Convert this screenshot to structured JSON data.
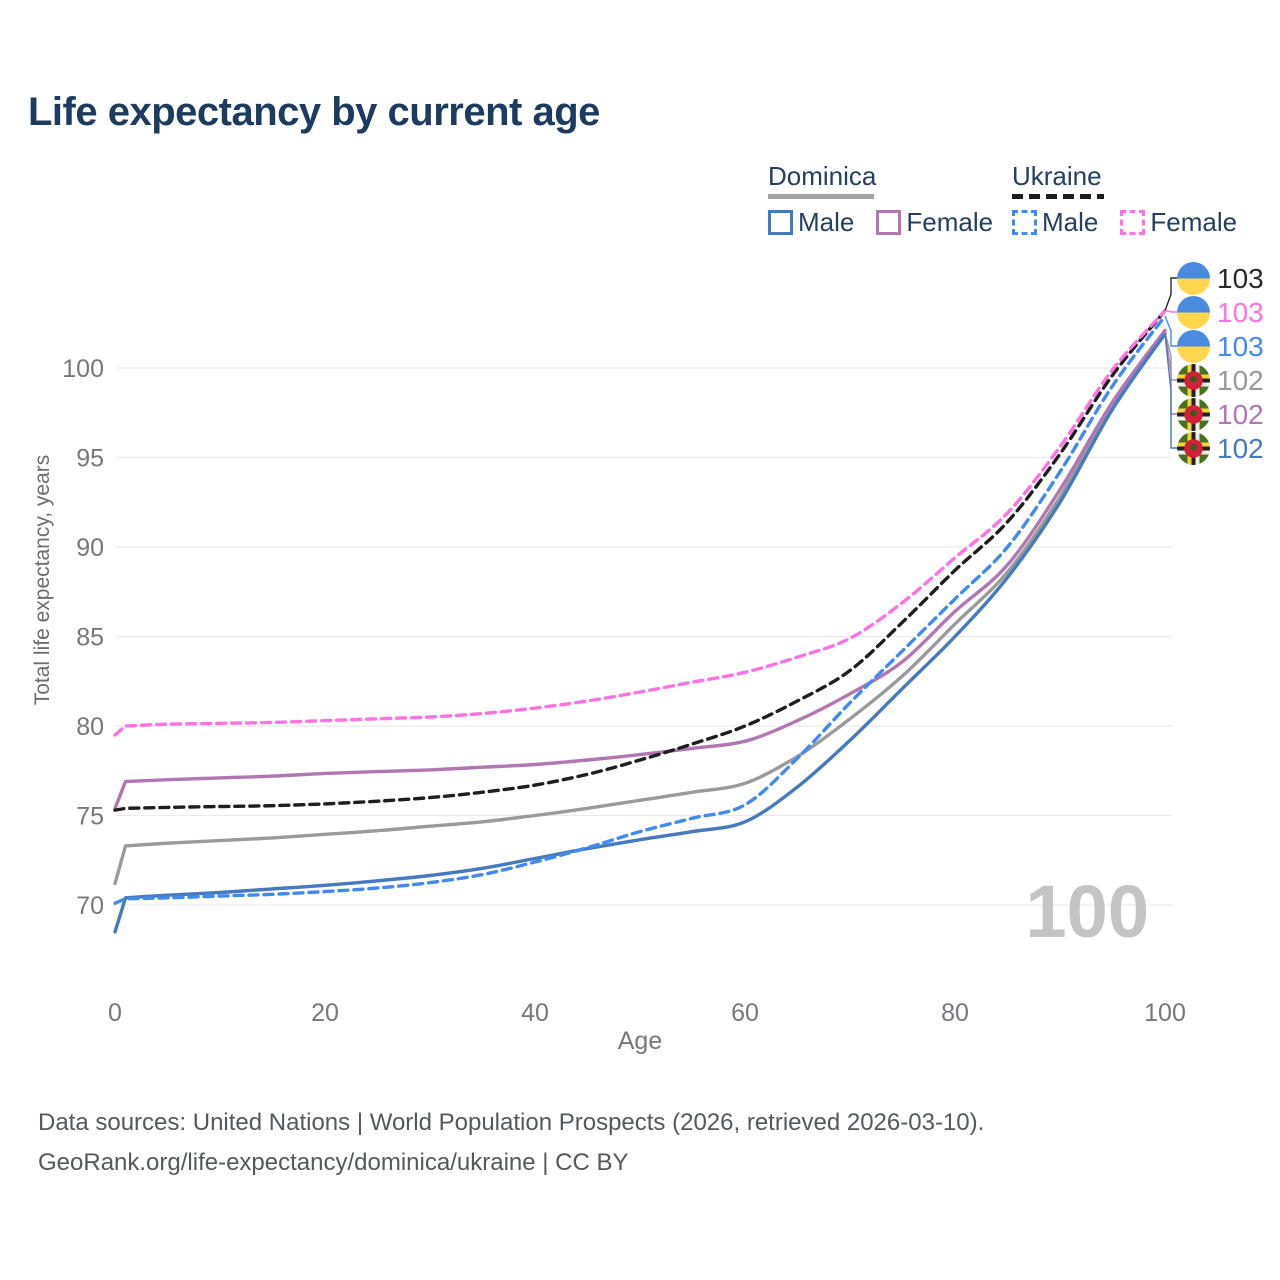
{
  "legend": {
    "groups": [
      {
        "label": "Dominica",
        "key": {
          "color": "#a3a3a3",
          "dashed": false
        },
        "items": [
          {
            "label": "Male",
            "color": "#4679be",
            "dashed": false
          },
          {
            "label": "Female",
            "color": "#b077b2",
            "dashed": false
          }
        ]
      },
      {
        "label": "Ukraine",
        "key": {
          "color": "#1e1e1e",
          "dashed": true
        },
        "items": [
          {
            "label": "Male",
            "color": "#4389f2",
            "dashed": true
          },
          {
            "label": "Female",
            "color": "#ff72e3",
            "dashed": true
          }
        ]
      }
    ]
  },
  "chart_data": {
    "type": "line",
    "title": "Life expectancy by current age",
    "xlabel": "Age",
    "ylabel": "Total life expectancy, years",
    "xlim": [
      0,
      100
    ],
    "ylim": [
      67,
      104
    ],
    "xticks": [
      0,
      20,
      40,
      60,
      80,
      100
    ],
    "yticks": [
      70,
      75,
      80,
      85,
      90,
      95,
      100
    ],
    "grid": true,
    "legend_position": "top-right",
    "x": [
      0,
      1,
      5,
      10,
      15,
      20,
      25,
      30,
      35,
      40,
      45,
      50,
      55,
      60,
      65,
      70,
      75,
      80,
      85,
      90,
      95,
      100
    ],
    "series": [
      {
        "id": "dominica-both",
        "name": "Dominica — Both sexes",
        "color": "#9a9a9a",
        "dashed": false,
        "values": [
          71.2,
          73.3,
          73.45,
          73.6,
          73.75,
          73.95,
          74.15,
          74.4,
          74.65,
          75.0,
          75.4,
          75.85,
          76.3,
          76.8,
          78.3,
          80.4,
          82.8,
          85.7,
          88.6,
          92.8,
          97.9,
          102.0
        ]
      },
      {
        "id": "dominica-female",
        "name": "Dominica — Female",
        "color": "#b077b2",
        "dashed": false,
        "values": [
          75.4,
          76.9,
          77.0,
          77.1,
          77.2,
          77.35,
          77.45,
          77.55,
          77.7,
          77.85,
          78.1,
          78.4,
          78.75,
          79.15,
          80.3,
          81.8,
          83.6,
          86.4,
          89.0,
          93.2,
          98.1,
          102.1
        ]
      },
      {
        "id": "dominica-male",
        "name": "Dominica — Male",
        "color": "#4679be",
        "dashed": false,
        "values": [
          68.5,
          70.4,
          70.55,
          70.7,
          70.9,
          71.1,
          71.35,
          71.65,
          72.05,
          72.6,
          73.15,
          73.65,
          74.1,
          74.65,
          76.6,
          79.2,
          82.1,
          85.0,
          88.3,
          92.5,
          97.7,
          101.9
        ]
      },
      {
        "id": "ukraine-both",
        "name": "Ukraine — Both sexes",
        "color": "#1e1e1e",
        "dashed": true,
        "values": [
          75.3,
          75.4,
          75.45,
          75.5,
          75.55,
          75.65,
          75.8,
          76.0,
          76.3,
          76.7,
          77.3,
          78.1,
          79.0,
          80.0,
          81.4,
          83.1,
          85.8,
          88.7,
          91.4,
          95.2,
          99.6,
          103.2
        ]
      },
      {
        "id": "ukraine-male",
        "name": "Ukraine — Male",
        "color": "#4389f2",
        "dashed": true,
        "values": [
          70.1,
          70.35,
          70.4,
          70.5,
          70.6,
          70.75,
          70.95,
          71.25,
          71.7,
          72.4,
          73.2,
          74.1,
          74.85,
          75.6,
          78.2,
          81.3,
          84.2,
          87.1,
          90.0,
          94.2,
          99.0,
          102.9
        ]
      },
      {
        "id": "ukraine-female",
        "name": "Ukraine — Female",
        "color": "#ff72e3",
        "dashed": true,
        "values": [
          79.5,
          80.0,
          80.1,
          80.15,
          80.2,
          80.3,
          80.4,
          80.5,
          80.7,
          81.0,
          81.4,
          81.9,
          82.45,
          83.0,
          83.85,
          84.9,
          86.9,
          89.4,
          91.9,
          95.6,
          99.9,
          103.2
        ]
      }
    ],
    "end_labels": [
      {
        "value": "103",
        "flag": "ukraine",
        "color": "#2a2a2a",
        "series": 3
      },
      {
        "value": "103",
        "flag": "ukraine",
        "color": "#ff72e3",
        "series": 5
      },
      {
        "value": "103",
        "flag": "ukraine",
        "color": "#4389f2",
        "series": 4
      },
      {
        "value": "102",
        "flag": "dominica",
        "color": "#9a9a9a",
        "series": 0
      },
      {
        "value": "102",
        "flag": "dominica",
        "color": "#b077b2",
        "series": 1
      },
      {
        "value": "102",
        "flag": "dominica",
        "color": "#4679be",
        "series": 2
      }
    ]
  },
  "watermark": "100",
  "footer": {
    "line1": "Data sources: United Nations | World Population Prospects (2026, retrieved 2026-03-10).",
    "line2": "GeoRank.org/life-expectancy/dominica/ukraine | CC BY"
  }
}
